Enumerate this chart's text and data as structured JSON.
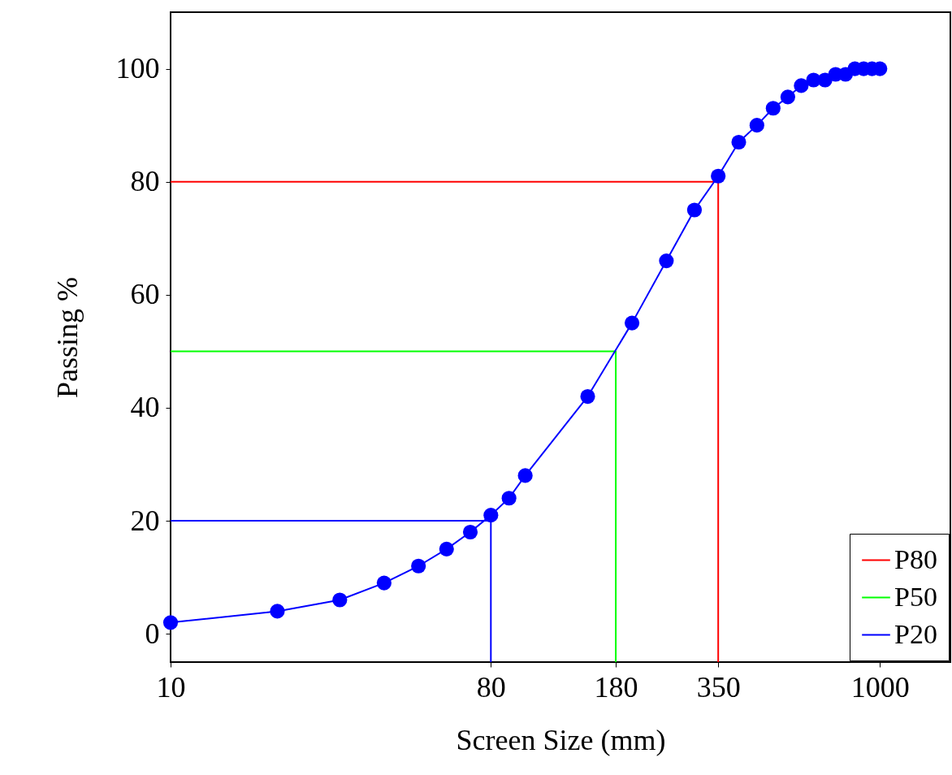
{
  "chart_data": {
    "type": "line",
    "xlabel": "Screen Size (mm)",
    "ylabel": "Passing %",
    "log": "x",
    "xlim": [
      10,
      1580
    ],
    "ylim": [
      -5,
      110
    ],
    "xticks": [
      10,
      80,
      180,
      350,
      1000
    ],
    "yticks": [
      0,
      20,
      40,
      60,
      80,
      100
    ],
    "legend": "bottom right",
    "grid": false,
    "series": [
      {
        "name": "P80",
        "color": "#ff0000",
        "marker": "none",
        "x": [
          10,
          350,
          350
        ],
        "values": [
          80,
          80,
          -5
        ]
      },
      {
        "name": "P50",
        "color": "#00ff00",
        "marker": "none",
        "x": [
          10,
          180,
          180
        ],
        "values": [
          50,
          50,
          -5
        ]
      },
      {
        "name": "P20",
        "color": "#0000ff",
        "marker": "none",
        "x": [
          10,
          80,
          80
        ],
        "values": [
          20,
          20,
          -5
        ]
      },
      {
        "color": "#0000ff",
        "marker": "circle",
        "x": [
          10,
          20,
          30,
          40,
          50,
          60,
          70,
          80,
          90,
          100,
          150,
          200,
          250,
          300,
          350,
          400,
          450,
          500,
          550,
          600,
          650,
          700,
          750,
          800,
          850,
          900,
          950,
          1000
        ],
        "values": [
          2,
          4,
          6,
          9,
          12,
          15,
          18,
          21,
          24,
          28,
          42,
          55,
          66,
          75,
          81,
          87,
          90,
          93,
          95,
          97,
          98,
          98,
          99,
          99,
          100,
          100,
          100,
          100
        ]
      }
    ]
  }
}
